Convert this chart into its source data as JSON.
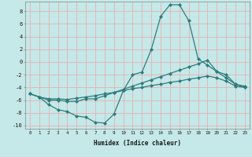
{
  "xlabel": "Humidex (Indice chaleur)",
  "xlim": [
    -0.5,
    23.5
  ],
  "ylim": [
    -10.5,
    9.5
  ],
  "yticks": [
    -10,
    -8,
    -6,
    -4,
    -2,
    0,
    2,
    4,
    6,
    8
  ],
  "xticks": [
    0,
    1,
    2,
    3,
    4,
    5,
    6,
    7,
    8,
    9,
    10,
    11,
    12,
    13,
    14,
    15,
    16,
    17,
    18,
    19,
    20,
    21,
    22,
    23
  ],
  "bg_color": "#c5e8e8",
  "plot_bg_color": "#c5e8e8",
  "line_color": "#2e7d7d",
  "grid_color": "#e8b0b0",
  "series": [
    {
      "x": [
        0,
        1,
        2,
        3,
        4,
        5,
        6,
        7,
        8,
        9,
        10,
        11,
        12,
        13,
        14,
        15,
        16,
        17,
        18,
        19,
        20,
        21,
        22,
        23
      ],
      "y": [
        -5.0,
        -5.5,
        -6.7,
        -7.5,
        -7.8,
        -8.5,
        -8.7,
        -9.5,
        -9.6,
        -8.2,
        -4.5,
        -2.0,
        -1.6,
        2.0,
        7.2,
        9.0,
        9.0,
        6.5,
        0.5,
        -0.5,
        -1.5,
        -2.5,
        -3.5,
        -3.8
      ]
    },
    {
      "x": [
        0,
        1,
        2,
        3,
        4,
        5,
        6,
        7,
        8,
        9,
        10,
        11,
        12,
        13,
        14,
        15,
        16,
        17,
        18,
        19,
        20,
        21,
        22,
        23
      ],
      "y": [
        -5.0,
        -5.5,
        -6.0,
        -6.0,
        -6.2,
        -6.2,
        -5.8,
        -5.8,
        -5.3,
        -4.8,
        -4.3,
        -3.8,
        -3.3,
        -2.8,
        -2.3,
        -1.8,
        -1.3,
        -0.8,
        -0.3,
        0.3,
        -1.5,
        -2.0,
        -3.5,
        -4.0
      ]
    },
    {
      "x": [
        0,
        1,
        2,
        3,
        4,
        5,
        6,
        7,
        8,
        9,
        10,
        11,
        12,
        13,
        14,
        15,
        16,
        17,
        18,
        19,
        20,
        21,
        22,
        23
      ],
      "y": [
        -5.0,
        -5.5,
        -5.8,
        -5.8,
        -5.9,
        -5.7,
        -5.5,
        -5.3,
        -5.0,
        -4.8,
        -4.5,
        -4.2,
        -4.0,
        -3.7,
        -3.5,
        -3.2,
        -3.0,
        -2.7,
        -2.5,
        -2.2,
        -2.5,
        -3.0,
        -3.8,
        -4.0
      ]
    }
  ],
  "marker": "D",
  "markersize": 2.0,
  "linewidth": 0.9
}
